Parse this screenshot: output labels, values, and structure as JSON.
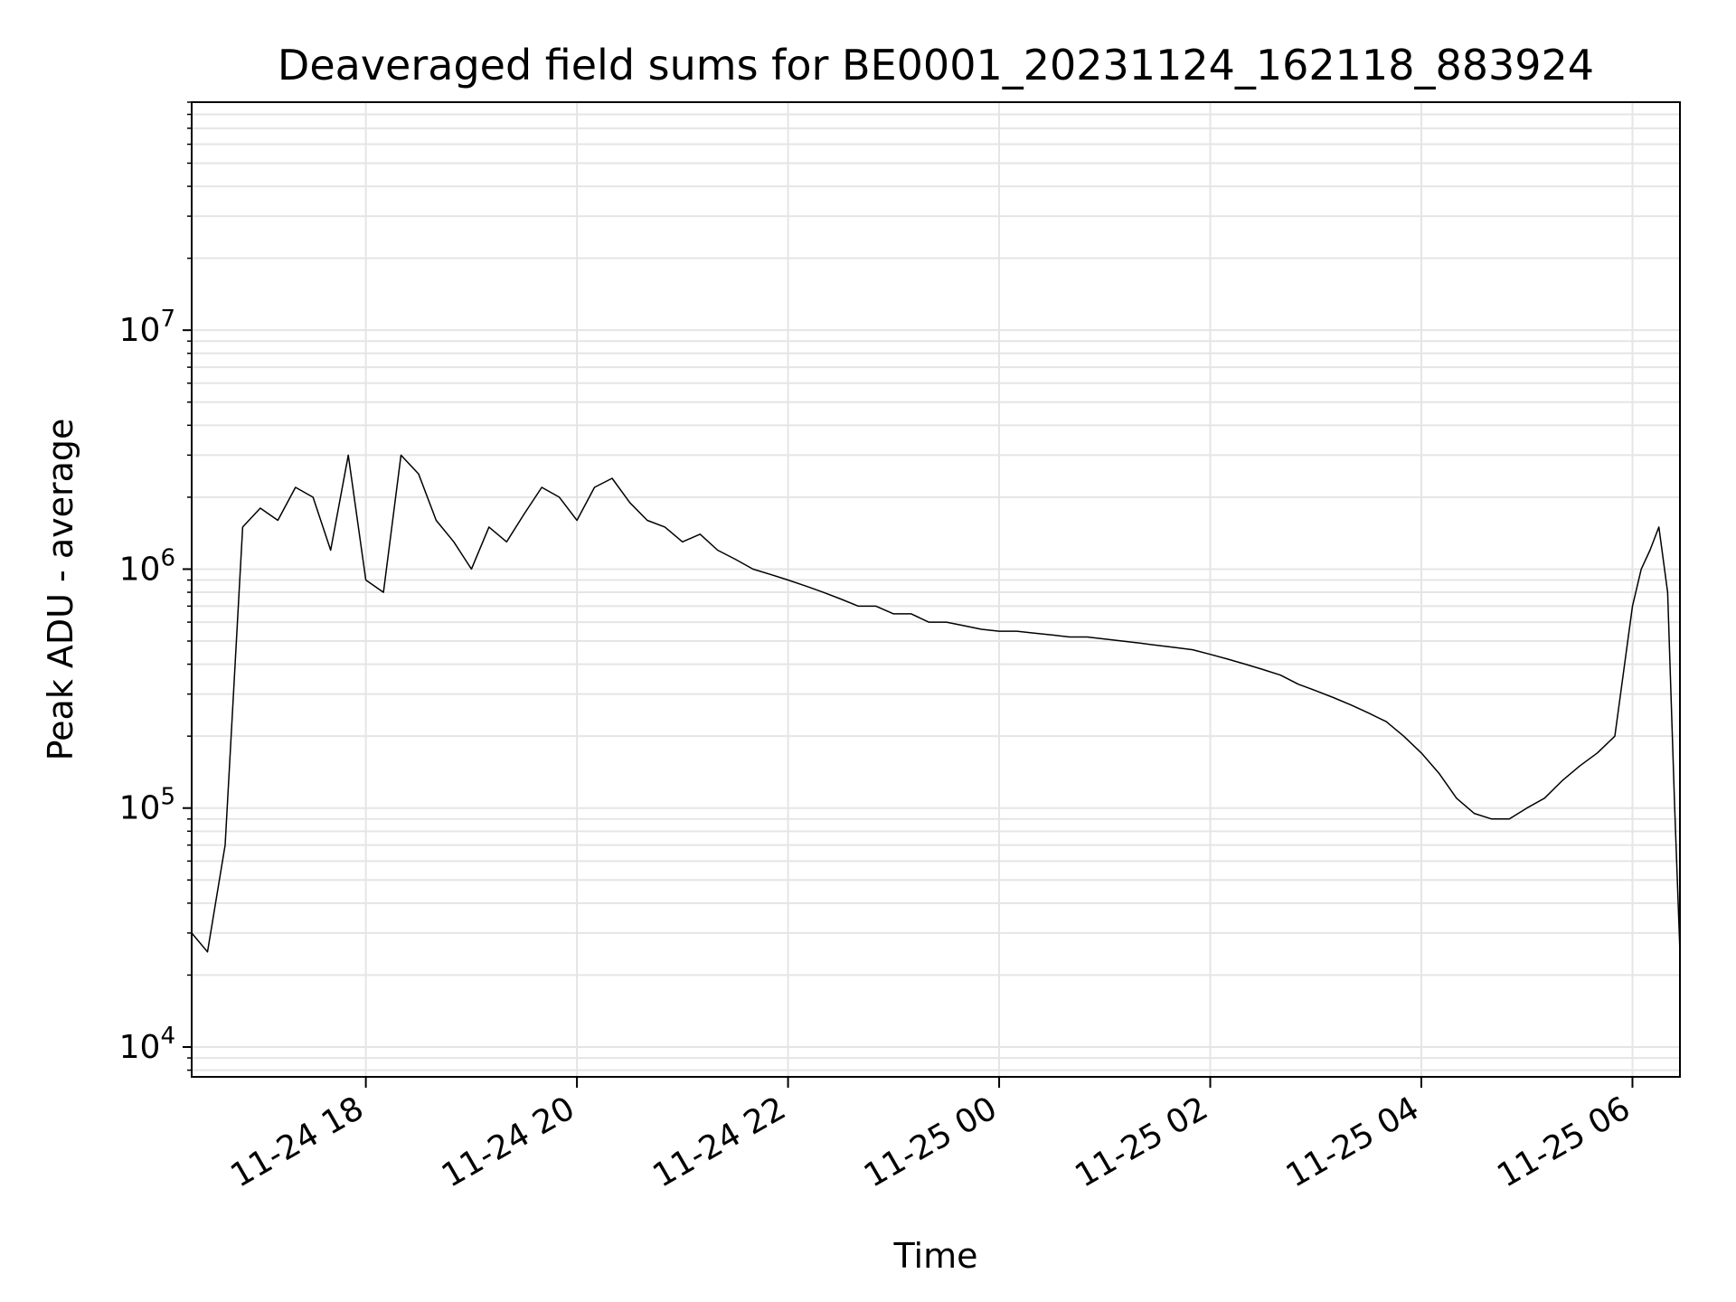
{
  "chart_data": {
    "type": "line",
    "title": "Deaveraged field sums for BE0001_20231124_162118_883924",
    "xlabel": "Time",
    "ylabel": "Peak ADU - average",
    "yscale": "log",
    "ylim": [
      7500,
      90000000
    ],
    "xlim": [
      "2023-11-24 16:21",
      "2023-11-25 06:27"
    ],
    "grid": true,
    "line_color": "#000000",
    "grid_color": "#e5e5e5",
    "x_ticks": [
      {
        "value": "2023-11-24 18:00",
        "label": "11-24 18"
      },
      {
        "value": "2023-11-24 20:00",
        "label": "11-24 20"
      },
      {
        "value": "2023-11-24 22:00",
        "label": "11-24 22"
      },
      {
        "value": "2023-11-25 00:00",
        "label": "11-25 00"
      },
      {
        "value": "2023-11-25 02:00",
        "label": "11-25 02"
      },
      {
        "value": "2023-11-25 04:00",
        "label": "11-25 04"
      },
      {
        "value": "2023-11-25 06:00",
        "label": "11-25 06"
      }
    ],
    "y_ticks": [
      {
        "value": 10000,
        "base": "10",
        "exp": "4"
      },
      {
        "value": 100000,
        "base": "10",
        "exp": "5"
      },
      {
        "value": 1000000,
        "base": "10",
        "exp": "6"
      },
      {
        "value": 10000000,
        "base": "10",
        "exp": "7"
      }
    ],
    "series": [
      {
        "values": [
          [
            "2023-11-24 16:21",
            30000
          ],
          [
            "2023-11-24 16:30",
            25000
          ],
          [
            "2023-11-24 16:40",
            70000
          ],
          [
            "2023-11-24 16:50",
            1500000
          ],
          [
            "2023-11-24 17:00",
            1800000
          ],
          [
            "2023-11-24 17:10",
            1600000
          ],
          [
            "2023-11-24 17:20",
            2200000
          ],
          [
            "2023-11-24 17:30",
            2000000
          ],
          [
            "2023-11-24 17:40",
            1200000
          ],
          [
            "2023-11-24 17:50",
            3000000
          ],
          [
            "2023-11-24 18:00",
            900000
          ],
          [
            "2023-11-24 18:10",
            800000
          ],
          [
            "2023-11-24 18:20",
            3000000
          ],
          [
            "2023-11-24 18:30",
            2500000
          ],
          [
            "2023-11-24 18:40",
            1600000
          ],
          [
            "2023-11-24 18:50",
            1300000
          ],
          [
            "2023-11-24 19:00",
            1000000
          ],
          [
            "2023-11-24 19:10",
            1500000
          ],
          [
            "2023-11-24 19:20",
            1300000
          ],
          [
            "2023-11-24 19:30",
            1700000
          ],
          [
            "2023-11-24 19:40",
            2200000
          ],
          [
            "2023-11-24 19:50",
            2000000
          ],
          [
            "2023-11-24 20:00",
            1600000
          ],
          [
            "2023-11-24 20:10",
            2200000
          ],
          [
            "2023-11-24 20:20",
            2400000
          ],
          [
            "2023-11-24 20:30",
            1900000
          ],
          [
            "2023-11-24 20:40",
            1600000
          ],
          [
            "2023-11-24 20:50",
            1500000
          ],
          [
            "2023-11-24 21:00",
            1300000
          ],
          [
            "2023-11-24 21:10",
            1400000
          ],
          [
            "2023-11-24 21:20",
            1200000
          ],
          [
            "2023-11-24 21:30",
            1100000
          ],
          [
            "2023-11-24 21:40",
            1000000
          ],
          [
            "2023-11-24 21:50",
            950000
          ],
          [
            "2023-11-24 22:00",
            900000
          ],
          [
            "2023-11-24 22:10",
            850000
          ],
          [
            "2023-11-24 22:20",
            800000
          ],
          [
            "2023-11-24 22:30",
            750000
          ],
          [
            "2023-11-24 22:40",
            700000
          ],
          [
            "2023-11-24 22:50",
            700000
          ],
          [
            "2023-11-24 23:00",
            650000
          ],
          [
            "2023-11-24 23:10",
            650000
          ],
          [
            "2023-11-24 23:20",
            600000
          ],
          [
            "2023-11-24 23:30",
            600000
          ],
          [
            "2023-11-24 23:40",
            580000
          ],
          [
            "2023-11-24 23:50",
            560000
          ],
          [
            "2023-11-25 00:00",
            550000
          ],
          [
            "2023-11-25 00:10",
            550000
          ],
          [
            "2023-11-25 00:20",
            540000
          ],
          [
            "2023-11-25 00:30",
            530000
          ],
          [
            "2023-11-25 00:40",
            520000
          ],
          [
            "2023-11-25 00:50",
            520000
          ],
          [
            "2023-11-25 01:00",
            510000
          ],
          [
            "2023-11-25 01:10",
            500000
          ],
          [
            "2023-11-25 01:20",
            490000
          ],
          [
            "2023-11-25 01:30",
            480000
          ],
          [
            "2023-11-25 01:40",
            470000
          ],
          [
            "2023-11-25 01:50",
            460000
          ],
          [
            "2023-11-25 02:00",
            440000
          ],
          [
            "2023-11-25 02:10",
            420000
          ],
          [
            "2023-11-25 02:20",
            400000
          ],
          [
            "2023-11-25 02:30",
            380000
          ],
          [
            "2023-11-25 02:40",
            360000
          ],
          [
            "2023-11-25 02:50",
            330000
          ],
          [
            "2023-11-25 03:00",
            310000
          ],
          [
            "2023-11-25 03:10",
            290000
          ],
          [
            "2023-11-25 03:20",
            270000
          ],
          [
            "2023-11-25 03:30",
            250000
          ],
          [
            "2023-11-25 03:40",
            230000
          ],
          [
            "2023-11-25 03:50",
            200000
          ],
          [
            "2023-11-25 04:00",
            170000
          ],
          [
            "2023-11-25 04:10",
            140000
          ],
          [
            "2023-11-25 04:20",
            110000
          ],
          [
            "2023-11-25 04:30",
            95000
          ],
          [
            "2023-11-25 04:40",
            90000
          ],
          [
            "2023-11-25 04:50",
            90000
          ],
          [
            "2023-11-25 05:00",
            100000
          ],
          [
            "2023-11-25 05:10",
            110000
          ],
          [
            "2023-11-25 05:20",
            130000
          ],
          [
            "2023-11-25 05:30",
            150000
          ],
          [
            "2023-11-25 05:40",
            170000
          ],
          [
            "2023-11-25 05:50",
            200000
          ],
          [
            "2023-11-25 06:00",
            700000
          ],
          [
            "2023-11-25 06:05",
            1000000
          ],
          [
            "2023-11-25 06:10",
            1200000
          ],
          [
            "2023-11-25 06:15",
            1500000
          ],
          [
            "2023-11-25 06:20",
            800000
          ],
          [
            "2023-11-25 06:24",
            100000
          ],
          [
            "2023-11-25 06:27",
            25000
          ]
        ]
      }
    ]
  }
}
